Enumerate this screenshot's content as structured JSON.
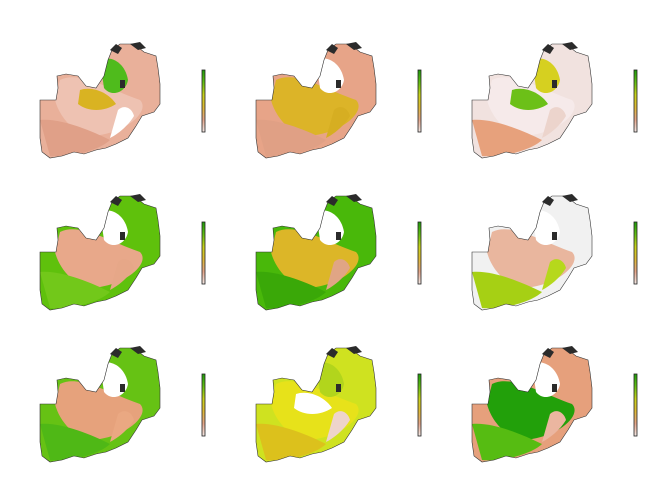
{
  "figure": {
    "layout": {
      "rows": 3,
      "cols": 3
    },
    "legend_style": "vertical colour bar to the right of each map, no tick labels",
    "colors": {
      "outline": "#333333",
      "lake": "#2b2b2b",
      "bar_frame": "#222222"
    },
    "panels": [
      {
        "base": "#e9b09a",
        "patches": [
          "#eec2b2",
          "#e0a088",
          "#4fbb1c",
          "#ffffff",
          "#d9b322"
        ]
      },
      {
        "base": "#e7a488",
        "patches": [
          "#dcb428",
          "#e0a085",
          "#ffffff",
          "#d6ae22"
        ]
      },
      {
        "base": "#f1e2df",
        "patches": [
          "#f6eaea",
          "#e7a17c",
          "#d6d020",
          "#ecd4cc",
          "#6cc018"
        ]
      },
      {
        "base": "#5fc10c",
        "patches": [
          "#e8a88a",
          "#72c81a",
          "#ffffff",
          "#e6a788"
        ]
      },
      {
        "base": "#49b80a",
        "patches": [
          "#dcb628",
          "#3aa808",
          "#ffffff",
          "#e0a585"
        ]
      },
      {
        "base": "#f1f1f1",
        "patches": [
          "#e9b69e",
          "#a6d014",
          "#ffffff",
          "#b6d81c"
        ]
      },
      {
        "base": "#66c214",
        "patches": [
          "#e6a27c",
          "#4fb816",
          "#ffffff",
          "#eaa882"
        ]
      },
      {
        "base": "#cfe220",
        "patches": [
          "#e7e21a",
          "#dcc11c",
          "#b2d51c",
          "#eed4cc",
          "#ffffff"
        ]
      },
      {
        "base": "#e6a07c",
        "patches": [
          "#22a00a",
          "#56bc12",
          "#ffffff",
          "#ebb6a0"
        ]
      }
    ],
    "ramp": [
      "#1e9b0c",
      "#62bf12",
      "#c8d21a",
      "#dfba36",
      "#e5a58a",
      "#f2e9e6"
    ]
  }
}
